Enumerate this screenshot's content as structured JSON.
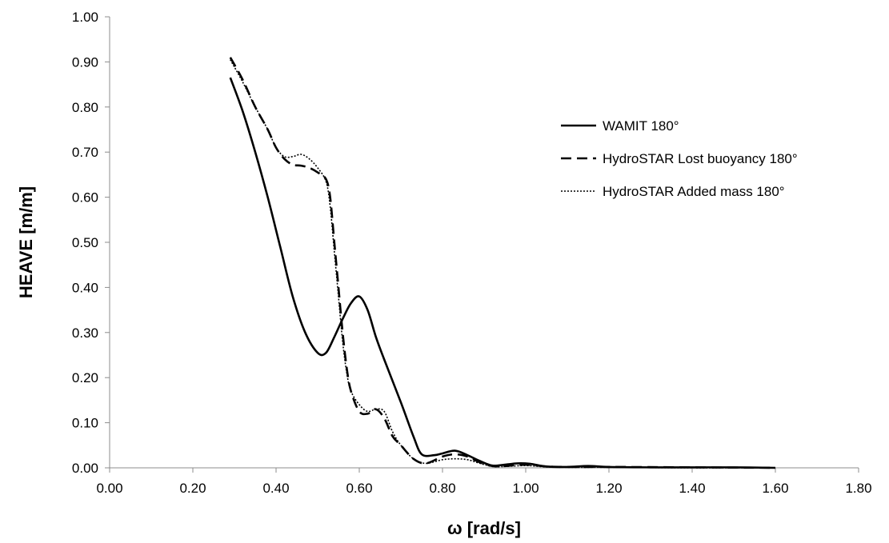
{
  "chart_data": {
    "type": "line",
    "title": "",
    "xlabel": "ω [rad/s]",
    "ylabel": "HEAVE [m/m]",
    "xlim": [
      0,
      1.8
    ],
    "ylim": [
      0,
      1.0
    ],
    "x_ticks": [
      "0.00",
      "0.20",
      "0.40",
      "0.60",
      "0.80",
      "1.00",
      "1.20",
      "1.40",
      "1.60",
      "1.80"
    ],
    "y_ticks": [
      "0.00",
      "0.10",
      "0.20",
      "0.30",
      "0.40",
      "0.50",
      "0.60",
      "0.70",
      "0.80",
      "0.90",
      "1.00"
    ],
    "grid": false,
    "legend_position": "right",
    "series": [
      {
        "name": "WAMIT 180°",
        "style": "solid",
        "color": "#000000",
        "x": [
          0.29,
          0.32,
          0.35,
          0.38,
          0.41,
          0.44,
          0.47,
          0.5,
          0.52,
          0.54,
          0.56,
          0.58,
          0.6,
          0.62,
          0.64,
          0.66,
          0.7,
          0.73,
          0.75,
          0.78,
          0.8,
          0.83,
          0.86,
          0.89,
          0.92,
          0.95,
          0.98,
          1.01,
          1.05,
          1.1,
          1.15,
          1.2,
          1.3,
          1.4,
          1.5,
          1.6
        ],
        "y": [
          0.865,
          0.79,
          0.7,
          0.6,
          0.49,
          0.38,
          0.3,
          0.255,
          0.255,
          0.29,
          0.33,
          0.365,
          0.38,
          0.35,
          0.29,
          0.24,
          0.145,
          0.07,
          0.03,
          0.028,
          0.032,
          0.038,
          0.028,
          0.015,
          0.005,
          0.007,
          0.01,
          0.009,
          0.003,
          0.002,
          0.004,
          0.002,
          0.001,
          0.001,
          0.001,
          0.0
        ]
      },
      {
        "name": "HydroSTAR  Lost buoyancy 180°",
        "style": "dashed",
        "color": "#000000",
        "x": [
          0.29,
          0.32,
          0.35,
          0.38,
          0.4,
          0.42,
          0.44,
          0.46,
          0.48,
          0.5,
          0.52,
          0.53,
          0.54,
          0.55,
          0.56,
          0.57,
          0.58,
          0.6,
          0.62,
          0.64,
          0.66,
          0.68,
          0.7,
          0.73,
          0.76,
          0.8,
          0.83,
          0.86,
          0.89,
          0.92,
          0.95,
          1.0,
          1.05,
          1.1,
          1.2,
          1.4,
          1.6
        ],
        "y": [
          0.91,
          0.86,
          0.8,
          0.75,
          0.71,
          0.685,
          0.672,
          0.67,
          0.665,
          0.655,
          0.64,
          0.6,
          0.5,
          0.4,
          0.3,
          0.22,
          0.17,
          0.125,
          0.12,
          0.13,
          0.11,
          0.07,
          0.05,
          0.02,
          0.01,
          0.025,
          0.03,
          0.025,
          0.012,
          0.004,
          0.004,
          0.007,
          0.003,
          0.002,
          0.002,
          0.001,
          0.0
        ]
      },
      {
        "name": "HydroSTAR  Added mass 180°",
        "style": "dotted",
        "color": "#000000",
        "x": [
          0.29,
          0.32,
          0.35,
          0.38,
          0.4,
          0.42,
          0.44,
          0.46,
          0.48,
          0.5,
          0.52,
          0.53,
          0.54,
          0.55,
          0.56,
          0.57,
          0.58,
          0.6,
          0.62,
          0.64,
          0.66,
          0.68,
          0.7,
          0.73,
          0.76,
          0.8,
          0.83,
          0.86,
          0.89,
          0.92,
          0.95,
          1.0,
          1.05,
          1.1,
          1.2,
          1.4,
          1.6
        ],
        "y": [
          0.905,
          0.855,
          0.8,
          0.75,
          0.71,
          0.69,
          0.69,
          0.695,
          0.685,
          0.665,
          0.635,
          0.58,
          0.48,
          0.38,
          0.28,
          0.21,
          0.17,
          0.14,
          0.125,
          0.13,
          0.125,
          0.08,
          0.05,
          0.02,
          0.01,
          0.018,
          0.02,
          0.018,
          0.01,
          0.003,
          0.003,
          0.005,
          0.002,
          0.001,
          0.001,
          0.0,
          0.0
        ]
      }
    ]
  }
}
